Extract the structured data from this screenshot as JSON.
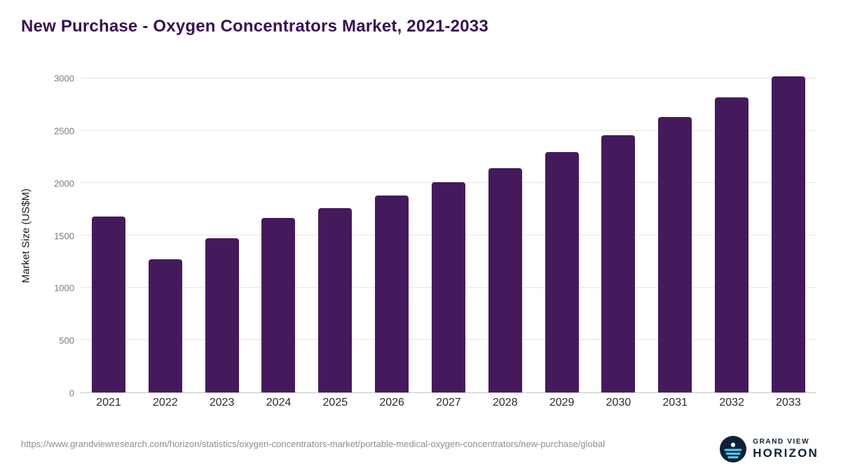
{
  "title": "New Purchase - Oxygen Concentrators Market, 2021-2033",
  "chart_data": {
    "type": "bar",
    "categories": [
      "2021",
      "2022",
      "2023",
      "2024",
      "2025",
      "2026",
      "2027",
      "2028",
      "2029",
      "2030",
      "2031",
      "2032",
      "2033"
    ],
    "values": [
      1680,
      1270,
      1470,
      1665,
      1760,
      1880,
      2010,
      2145,
      2295,
      2460,
      2630,
      2820,
      3020
    ],
    "title": "New Purchase - Oxygen Concentrators Market, 2021-2033",
    "xlabel": "",
    "ylabel": "Market Size (US$M)",
    "ylim": [
      0,
      3000
    ],
    "yticks": [
      0,
      500,
      1000,
      1500,
      2000,
      2500,
      3000
    ],
    "grid": "horizontal",
    "legend": "none",
    "bar_color": "#451a5c"
  },
  "colors": {
    "title_text": "#3b1053",
    "bar": "#451a5c",
    "gridline": "#e6e6e6",
    "axis_line": "#c4c4c4",
    "logo_navy": "#0d2137",
    "logo_accent": "#56c1e1"
  },
  "footer": {
    "source_url": "https://www.grandviewresearch.com/horizon/statistics/oxygen-concentrators-market/portable-medical-oxygen-concentrators/new-purchase/global",
    "logo_line1": "GRAND VIEW",
    "logo_line2": "HORIZON"
  }
}
